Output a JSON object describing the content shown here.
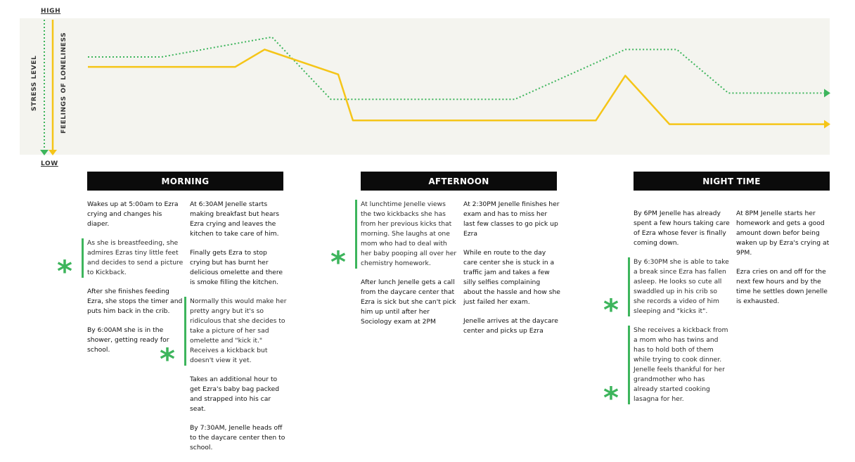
{
  "chart_data": {
    "type": "line",
    "title": "",
    "x": [
      0,
      10,
      20,
      30,
      40,
      50,
      60,
      70,
      80,
      90,
      100
    ],
    "ylim": [
      0,
      10
    ],
    "y_axis": {
      "high_label": "HIGH",
      "low_label": "LOW"
    },
    "series": [
      {
        "name": "STRESS LEVEL",
        "style": "dotted",
        "color": "#3db55c",
        "points": [
          [
            0,
            7.4
          ],
          [
            10,
            7.4
          ],
          [
            25,
            9.0
          ],
          [
            33,
            4.0
          ],
          [
            58,
            4.0
          ],
          [
            73,
            8.0
          ],
          [
            80,
            8.0
          ],
          [
            87,
            4.5
          ],
          [
            100,
            4.5
          ]
        ]
      },
      {
        "name": "FEELINGS OF LONELINESS",
        "style": "solid",
        "color": "#f5c518",
        "points": [
          [
            0,
            6.6
          ],
          [
            20,
            6.6
          ],
          [
            24,
            8.0
          ],
          [
            34,
            6.0
          ],
          [
            36,
            2.3
          ],
          [
            69,
            2.3
          ],
          [
            73,
            5.9
          ],
          [
            79,
            2.0
          ],
          [
            100,
            2.0
          ]
        ]
      }
    ],
    "grid": false,
    "legend": "vertical axis labels at left"
  },
  "sections": [
    {
      "title": "MORNING",
      "columns": [
        [
          {
            "text": "Wakes up at 5:00am to Ezra crying and changes his diaper."
          },
          {
            "text": "As she is breastfeeding, she admires Ezras tiny little feet and decides to send a picture to Kickback.",
            "highlight": true
          },
          {
            "text": "After she finishes feeding Ezra, she stops the timer and puts him back in the crib."
          },
          {
            "text": "By 6:00AM she is in the shower, getting ready for school."
          }
        ],
        [
          {
            "text": "At 6:30AM Jenelle starts making breakfast but hears Ezra crying and leaves the kitchen to take care of him."
          },
          {
            "text": "Finally gets Ezra to stop crying but has burnt her delicious omelette and there is smoke filling the kitchen."
          },
          {
            "text": "Normally this would make her pretty angry but it's so ridiculous that she decides to take a picture of her sad omelette and \"kick it.\" Receives a kickback but doesn't view it yet.",
            "highlight": true
          },
          {
            "text": "Takes an additional hour to get Ezra's baby bag packed and strapped into his car seat."
          },
          {
            "text": "By 7:30AM, Jenelle heads off to the daycare center then to school."
          }
        ]
      ]
    },
    {
      "title": "AFTERNOON",
      "columns": [
        [
          {
            "text": "At lunchtime Jenelle views the two kickbacks she has from her previous kicks that morning. She laughs at one mom who had to deal with her baby pooping all over her chemistry homework.",
            "highlight": true
          },
          {
            "text": "After lunch Jenelle gets a call from the daycare center that Ezra is sick but she can't pick him up until after her Sociology exam at 2PM"
          }
        ],
        [
          {
            "text": "At 2:30PM Jenelle finishes her exam and has to miss her last few classes to go pick up Ezra"
          },
          {
            "text": "While en route to the day care center she is stuck in a traffic jam and takes a few silly selfies complaining about the hassle and how she just failed her exam."
          },
          {
            "text": "Jenelle arrives at the daycare center and picks up Ezra"
          }
        ]
      ]
    },
    {
      "title": "NIGHT TIME",
      "columns": [
        [
          {
            "text": "By 6PM Jenelle has already spent a few hours taking care of Ezra whose fever is finally coming down."
          },
          {
            "text": "By 6:30PM she is able to take a break since Ezra has fallen asleep. He looks so cute all swaddled up in his crib so she records a video of him sleeping and \"kicks it\".",
            "highlight": true
          },
          {
            "text": "She receives a kickback from a mom who has twins and has to hold both of them while trying to cook dinner. Jenelle feels thankful for her grandmother who has already started cooking lasagna for her.",
            "highlight": true
          }
        ],
        [
          {
            "text": "At 8PM Jenelle starts her homework and gets a good amount down befor being waken up by Ezra's crying at 9PM."
          },
          {
            "text": "Ezra cries on and off for the next few hours and by the time he settles down Jenelle is exhausted."
          }
        ]
      ]
    },
    {
      "note_marker": "*"
    }
  ]
}
